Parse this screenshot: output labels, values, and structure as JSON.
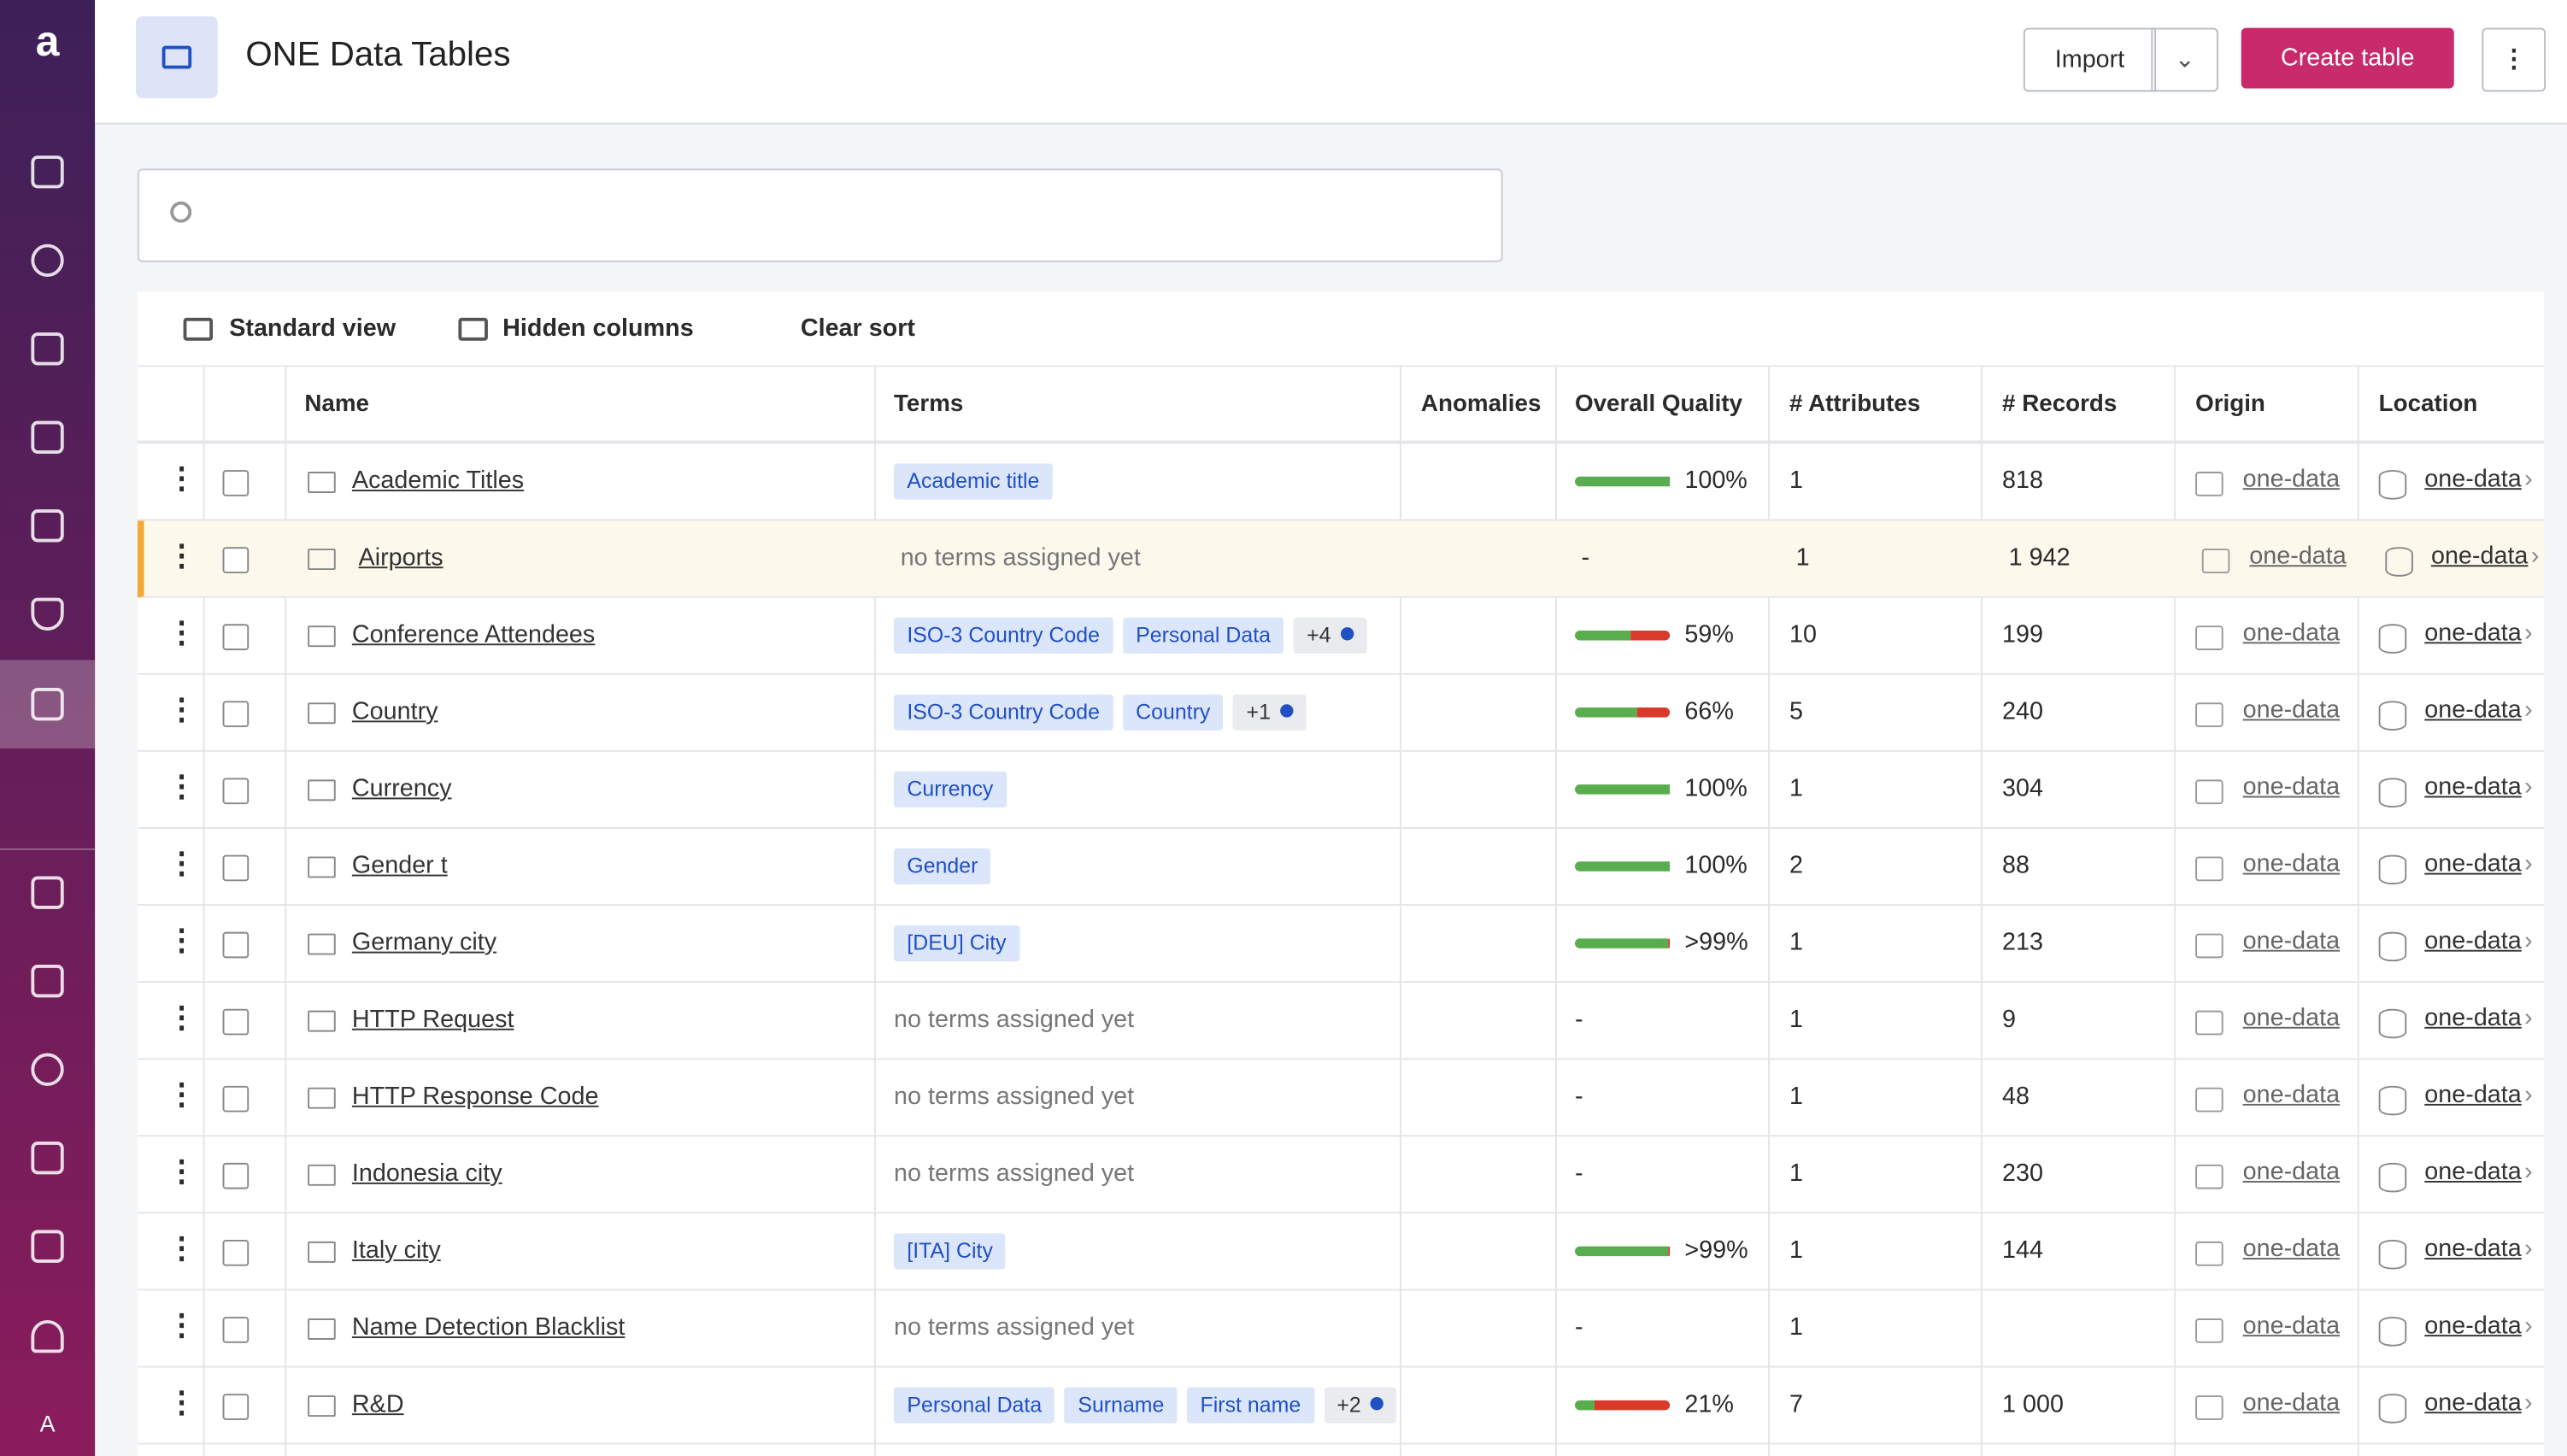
{
  "sidebar": {
    "logo": "a",
    "user": "A"
  },
  "header": {
    "title": "ONE Data Tables",
    "import": "Import",
    "create": "Create table"
  },
  "toolbar": {
    "view": "Standard view",
    "hidden": "Hidden columns",
    "clear": "Clear sort"
  },
  "table": {
    "columns": [
      "Name",
      "Terms",
      "Anomalies",
      "Overall Quality",
      "# Attributes",
      "# Records",
      "Origin",
      "Location"
    ],
    "rows": [
      {
        "name": "Academic Titles",
        "terms": [
          "Academic title"
        ],
        "quality": {
          "value": 100,
          "label": "100%"
        },
        "attributes": 1,
        "records": 818,
        "origin": "one-data",
        "location": "one-data"
      },
      {
        "name": "Airports",
        "terms_note": "no terms assigned yet",
        "quality": "-",
        "attributes": 1,
        "records": "1 942",
        "origin": "one-data",
        "location": "one-data"
      },
      {
        "name": "Conference Attendees",
        "terms": [
          "ISO-3 Country Code",
          "Personal Data"
        ],
        "more": "+4",
        "quality": {
          "value": 59,
          "label": "59%"
        },
        "attributes": 10,
        "records": 199,
        "origin": "one-data",
        "location": "one-data"
      },
      {
        "name": "Country",
        "terms": [
          "ISO-3 Country Code",
          "Country"
        ],
        "more": "+1",
        "quality": {
          "value": 66,
          "label": "66%"
        },
        "attributes": 5,
        "records": 240,
        "origin": "one-data",
        "location": "one-data"
      },
      {
        "name": "Currency",
        "terms": [
          "Currency"
        ],
        "quality": {
          "value": 100,
          "label": "100%"
        },
        "attributes": 1,
        "records": 304,
        "origin": "one-data",
        "location": "one-data"
      },
      {
        "name": "Gender t",
        "terms": [
          "Gender"
        ],
        "quality": {
          "value": 100,
          "label": "100%"
        },
        "attributes": 2,
        "records": 88,
        "origin": "one-data",
        "location": "one-data"
      },
      {
        "name": "Germany city",
        "terms": [
          "[DEU] City"
        ],
        "quality": {
          "value": 99,
          "label": ">99%"
        },
        "attributes": 1,
        "records": 213,
        "origin": "one-data",
        "location": "one-data"
      },
      {
        "name": "HTTP Request",
        "terms_note": "no terms assigned yet",
        "quality": "-",
        "attributes": 1,
        "records": 9,
        "origin": "one-data",
        "location": "one-data"
      },
      {
        "name": "HTTP Response Code",
        "terms_note": "no terms assigned yet",
        "quality": "-",
        "attributes": 1,
        "records": 48,
        "origin": "one-data",
        "location": "one-data"
      },
      {
        "name": "Indonesia city",
        "terms_note": "no terms assigned yet",
        "quality": "-",
        "attributes": 1,
        "records": 230,
        "origin": "one-data",
        "location": "one-data"
      },
      {
        "name": "Italy city",
        "terms": [
          "[ITA] City"
        ],
        "quality": {
          "value": 99,
          "label": ">99%"
        },
        "attributes": 1,
        "records": 144,
        "origin": "one-data",
        "location": "one-data"
      },
      {
        "name": "Name Detection Blacklist",
        "terms_note": "no terms assigned yet",
        "quality": "-",
        "attributes": 1,
        "origin": "one-data",
        "location": "one-data"
      },
      {
        "name": "R&D",
        "terms": [
          "Personal Data",
          "Surname",
          "First name"
        ],
        "more": "+2",
        "quality": {
          "value": 21,
          "label": "21%"
        },
        "attributes": 7,
        "records": "1 000",
        "origin": "one-data",
        "location": "one-data"
      }
    ]
  }
}
